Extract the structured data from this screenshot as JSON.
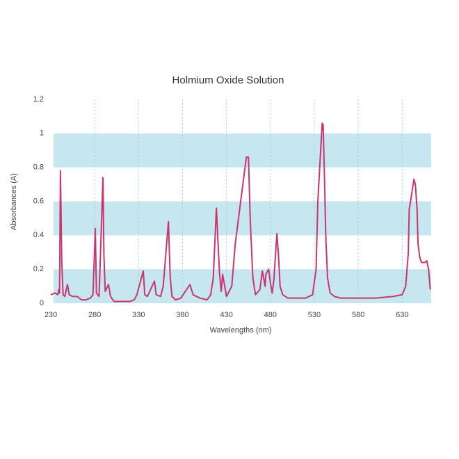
{
  "chart_data": {
    "type": "line",
    "title": "Holmium Oxide Solution",
    "x_label": "Wavelengths (nm)",
    "y_label": "Absorbances (A)",
    "x": [
      230,
      235,
      238,
      239,
      240,
      241,
      242.5,
      244,
      246,
      249,
      251,
      255,
      260,
      265,
      270,
      275,
      278,
      280.7,
      282,
      285,
      289.4,
      290.5,
      292,
      295.7,
      298,
      302,
      310,
      320,
      325,
      328,
      335.3,
      337,
      340,
      348,
      350,
      355,
      358,
      363.9,
      366,
      368,
      372,
      378,
      388.4,
      392,
      400,
      408,
      412,
      415,
      418.5,
      420,
      422,
      424,
      425.6,
      430,
      436,
      440,
      452.6,
      455,
      457,
      460,
      463,
      468,
      470.8,
      474,
      474.8,
      478,
      480,
      482,
      484,
      487.4,
      489,
      491,
      494,
      500,
      510,
      520,
      528,
      532,
      534,
      538.9,
      540,
      541.5,
      543,
      545,
      548,
      553,
      560,
      580,
      600,
      620,
      630,
      634,
      637,
      638,
      643.4,
      645,
      647,
      648,
      650,
      652,
      656,
      658,
      660,
      662
    ],
    "series": [
      {
        "name": "Holmium Oxide Solution",
        "color": "#c8356f",
        "values": [
          0.05,
          0.06,
          0.05,
          0.08,
          0.06,
          0.78,
          0.25,
          0.05,
          0.04,
          0.11,
          0.05,
          0.04,
          0.04,
          0.02,
          0.02,
          0.03,
          0.05,
          0.44,
          0.06,
          0.04,
          0.74,
          0.28,
          0.07,
          0.11,
          0.04,
          0.01,
          0.01,
          0.01,
          0.02,
          0.05,
          0.19,
          0.05,
          0.04,
          0.13,
          0.05,
          0.04,
          0.1,
          0.48,
          0.15,
          0.04,
          0.02,
          0.03,
          0.11,
          0.05,
          0.03,
          0.02,
          0.05,
          0.15,
          0.56,
          0.4,
          0.18,
          0.07,
          0.17,
          0.04,
          0.1,
          0.35,
          0.86,
          0.86,
          0.5,
          0.15,
          0.05,
          0.08,
          0.19,
          0.1,
          0.17,
          0.2,
          0.12,
          0.06,
          0.14,
          0.41,
          0.3,
          0.1,
          0.05,
          0.03,
          0.03,
          0.03,
          0.05,
          0.2,
          0.6,
          1.06,
          1.05,
          0.75,
          0.4,
          0.15,
          0.06,
          0.04,
          0.03,
          0.03,
          0.03,
          0.04,
          0.05,
          0.1,
          0.3,
          0.55,
          0.73,
          0.7,
          0.55,
          0.35,
          0.27,
          0.24,
          0.24,
          0.25,
          0.2,
          0.08
        ]
      }
    ],
    "xlim": [
      230,
      663
    ],
    "ylim": [
      0,
      1.2
    ],
    "xticks": [
      230,
      280,
      330,
      380,
      430,
      480,
      530,
      580,
      630
    ],
    "yticks": [
      0,
      0.2,
      0.4,
      0.6,
      0.8,
      1,
      1.2
    ],
    "bands_color": "#c6e6f0",
    "grid": true
  }
}
